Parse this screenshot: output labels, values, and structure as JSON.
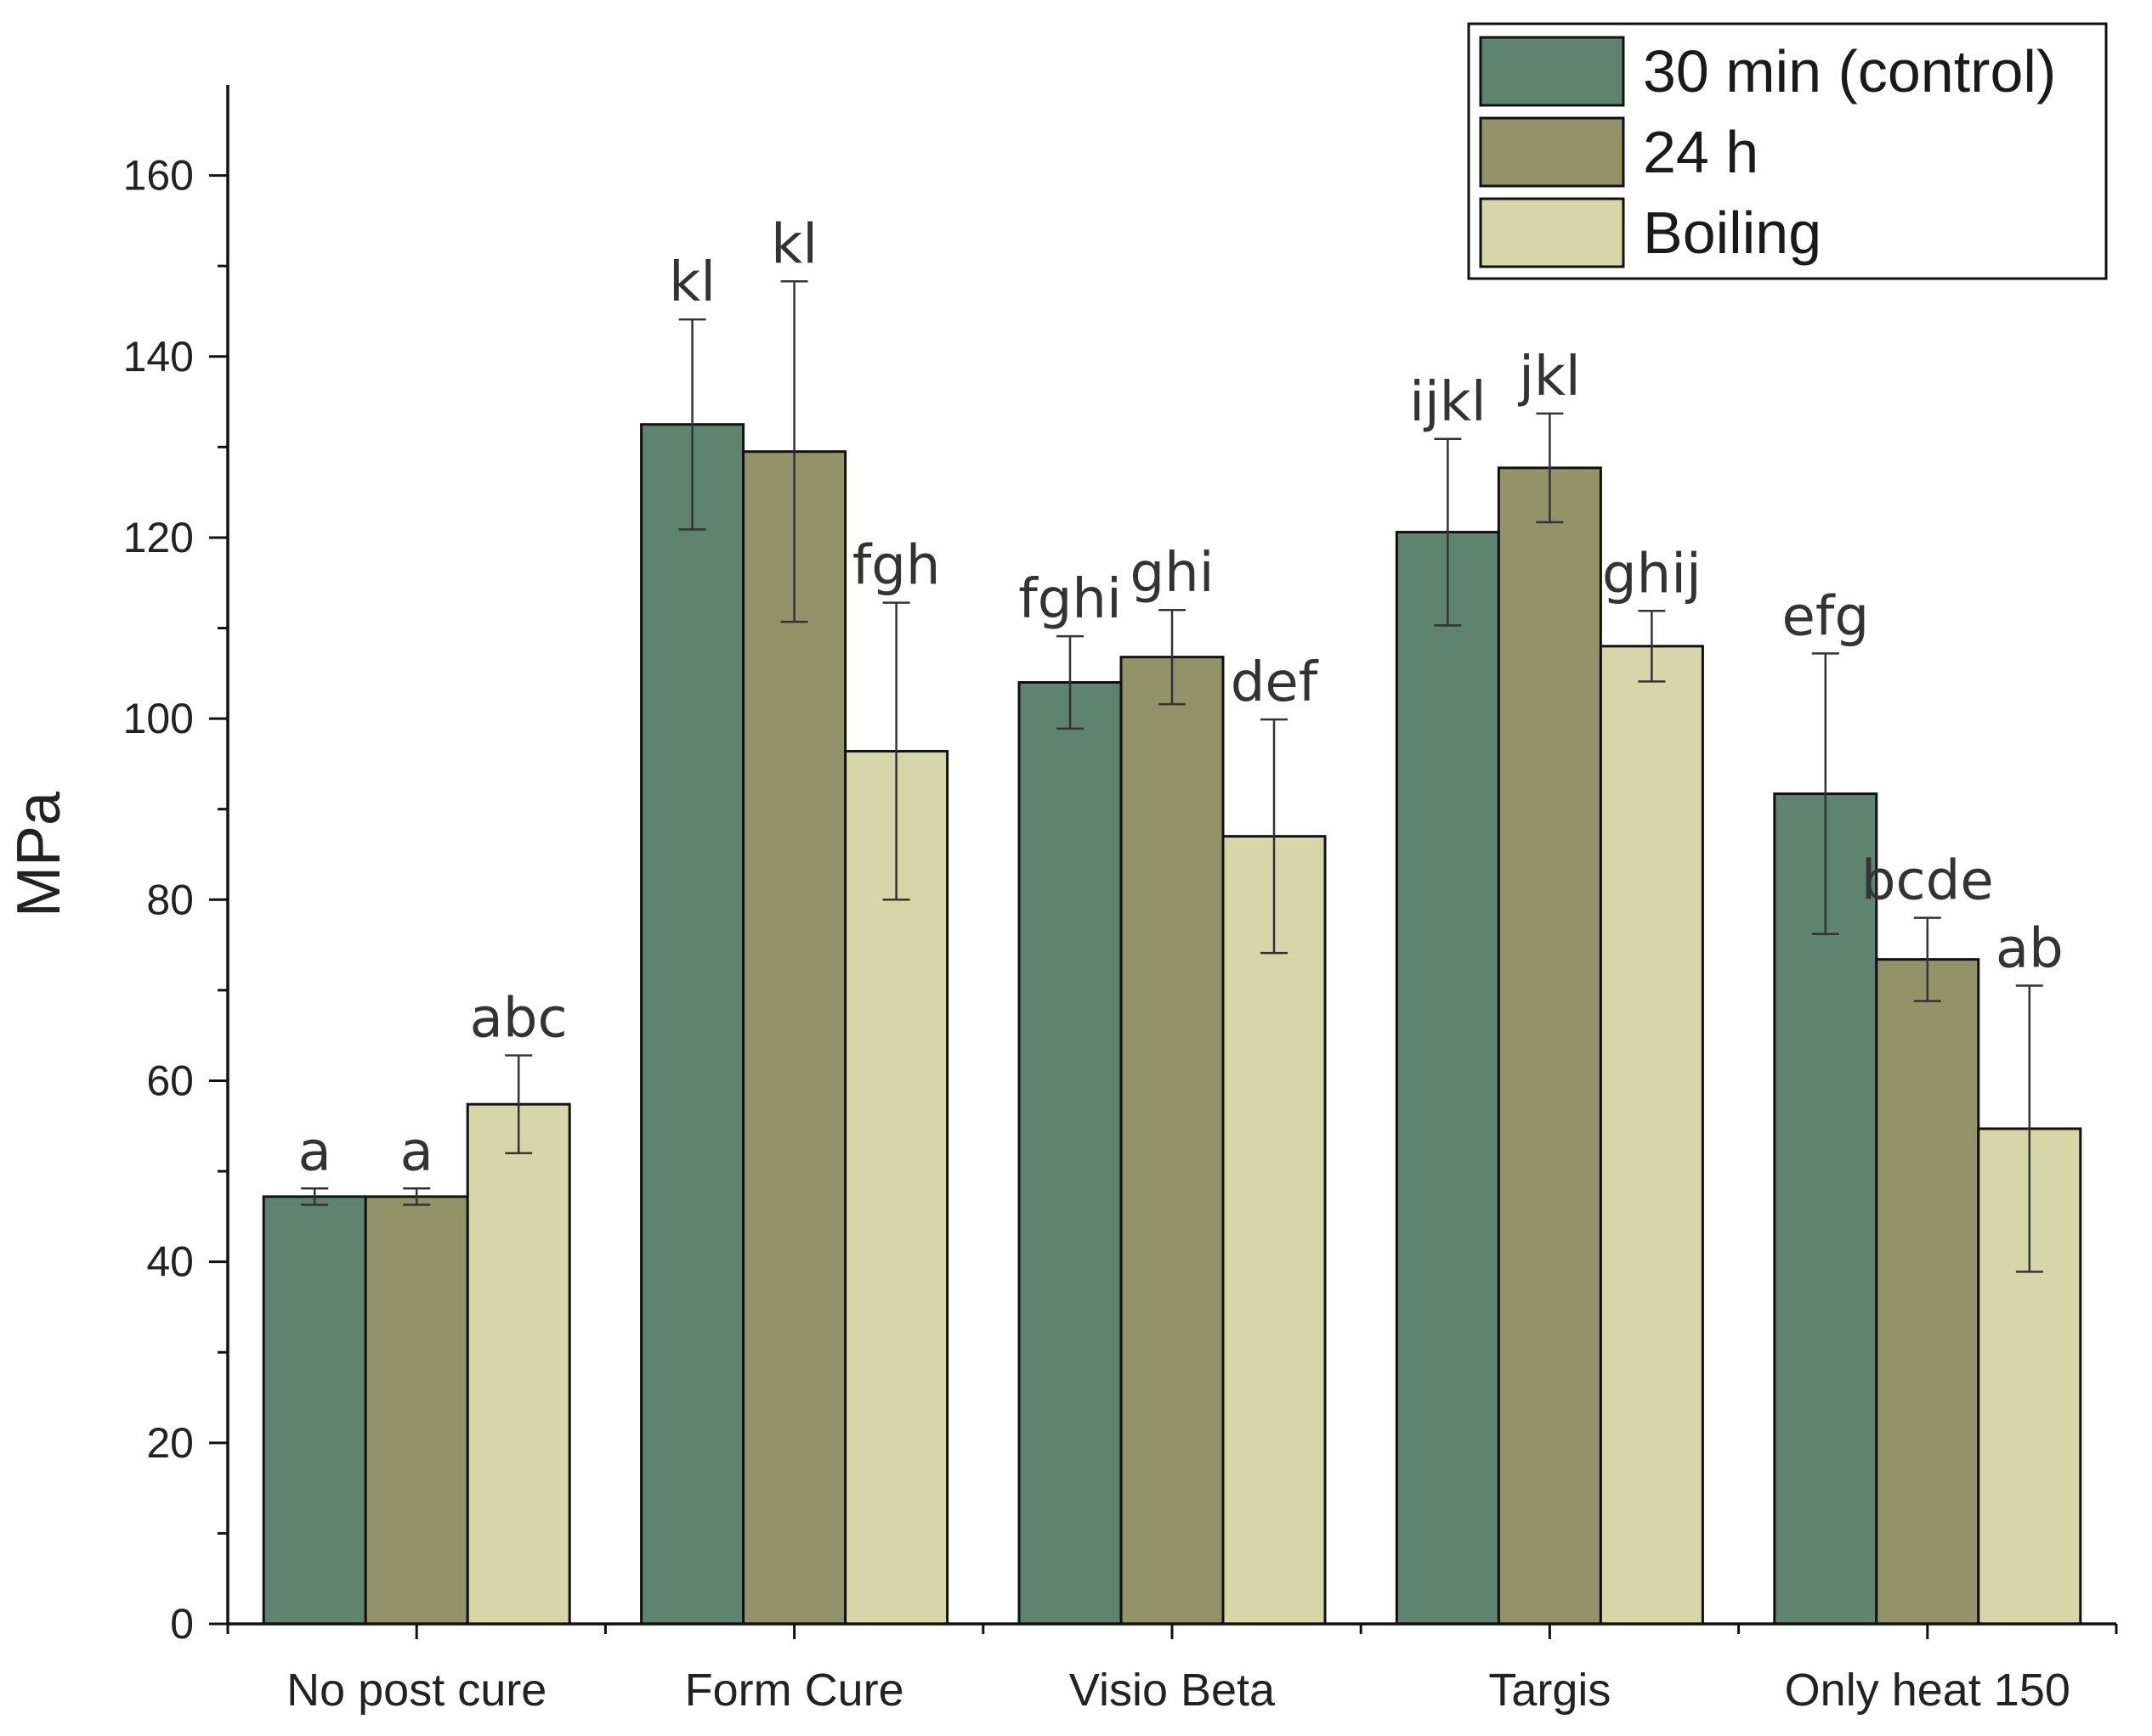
{
  "chart_data": {
    "type": "bar",
    "title": "",
    "xlabel": "",
    "ylabel": "MPa",
    "ylim": [
      0,
      170
    ],
    "yticks": [
      0,
      20,
      40,
      60,
      80,
      100,
      120,
      140,
      160
    ],
    "ytick_labels": [
      "0",
      "20",
      "40",
      "60",
      "80",
      "100",
      "120",
      "140",
      "160"
    ],
    "grid": false,
    "legend_position": "top-right",
    "categories": [
      "No post cure",
      "Form Cure",
      "Visio Beta",
      "Targis",
      "Only heat 150"
    ],
    "series": [
      {
        "name": "30 min (control)",
        "color": "#5e8370",
        "values": [
          47.2,
          132.5,
          104.0,
          120.6,
          91.7
        ],
        "errors": [
          0.9,
          11.6,
          5.1,
          10.3,
          15.5
        ],
        "labels": [
          "a",
          "kl",
          "fghi",
          "ijkl",
          "efg"
        ]
      },
      {
        "name": "24 h",
        "color": "#93936a",
        "values": [
          47.2,
          129.5,
          106.8,
          127.7,
          73.4
        ],
        "errors": [
          0.9,
          18.8,
          5.2,
          6.0,
          4.6
        ],
        "labels": [
          "a",
          "kl",
          "ghi",
          "jkl",
          "bcde"
        ]
      },
      {
        "name": "Boiling",
        "color": "#d6d6a9",
        "values": [
          57.4,
          96.4,
          87.0,
          108.0,
          54.7
        ],
        "errors": [
          5.4,
          16.4,
          12.9,
          3.9,
          15.8
        ],
        "labels": [
          "abc",
          "fgh",
          "def",
          "ghij",
          "ab"
        ]
      }
    ]
  }
}
